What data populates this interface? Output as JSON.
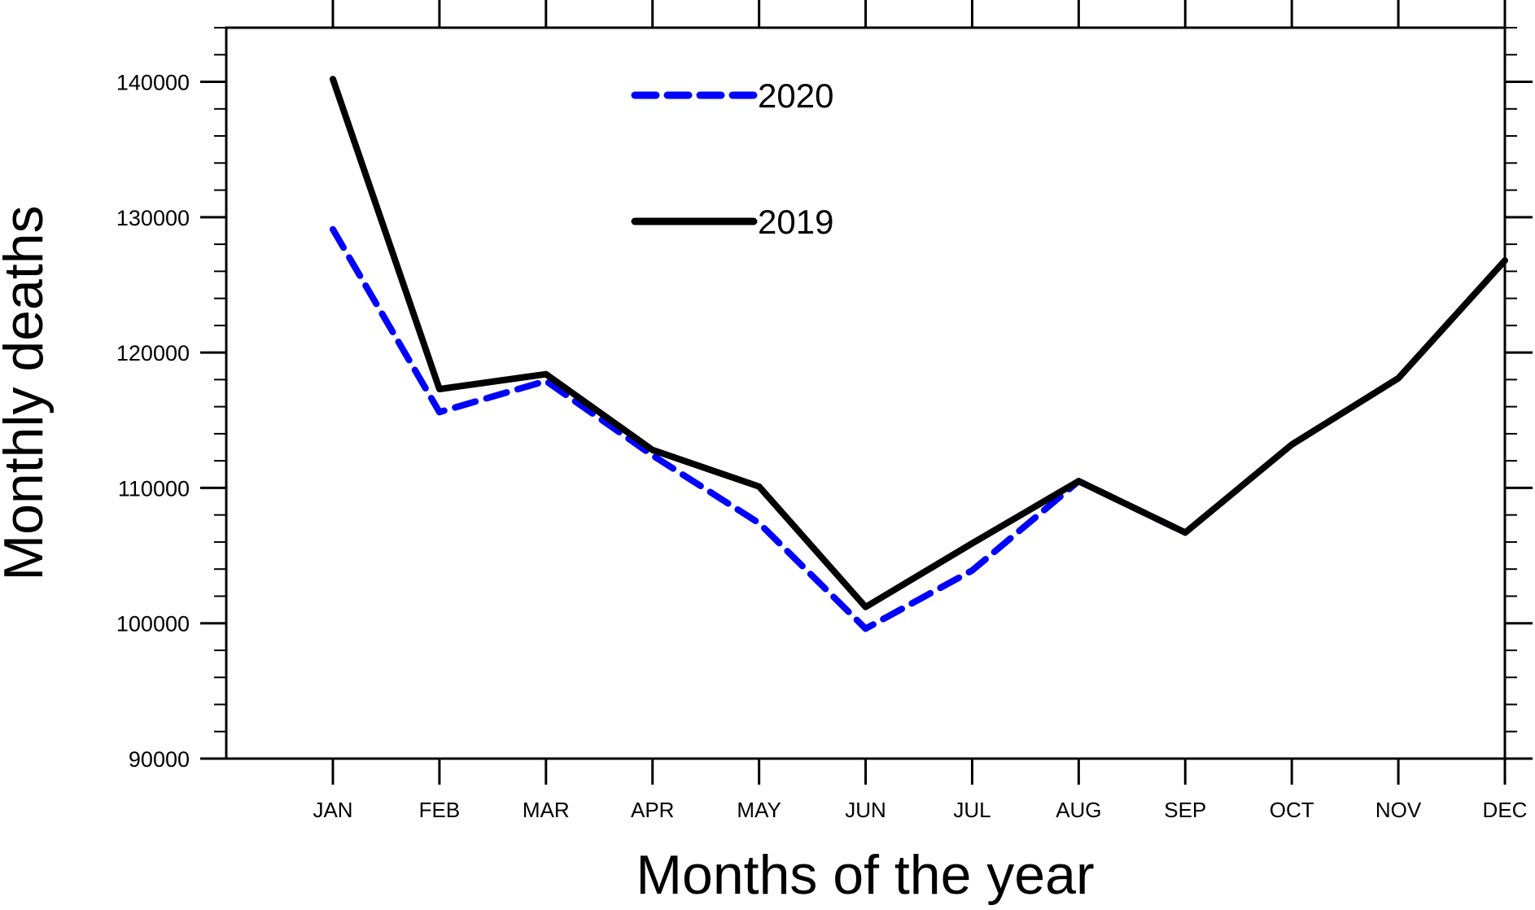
{
  "chart_data": {
    "type": "line",
    "title": "",
    "xlabel": "Months of the year",
    "ylabel": "Monthly deaths",
    "categories": [
      "JAN",
      "FEB",
      "MAR",
      "APR",
      "MAY",
      "JUN",
      "JUL",
      "AUG",
      "SEP",
      "OCT",
      "NOV",
      "DEC"
    ],
    "ylim": [
      90000,
      144000
    ],
    "yticks": [
      90000,
      100000,
      110000,
      120000,
      130000,
      140000
    ],
    "yminor_step": 2000,
    "grid": false,
    "legend_position": "top-center",
    "series": [
      {
        "name": "2020",
        "color": "#0000ff",
        "style": "dashed",
        "values": [
          129100,
          115600,
          117900,
          112400,
          107400,
          99600,
          103900,
          110500,
          106700,
          null,
          null,
          null
        ]
      },
      {
        "name": "2019",
        "color": "#000000",
        "style": "solid",
        "values": [
          140200,
          117300,
          118400,
          112800,
          110100,
          101200,
          105900,
          110500,
          106700,
          113200,
          118100,
          126800
        ]
      }
    ]
  }
}
